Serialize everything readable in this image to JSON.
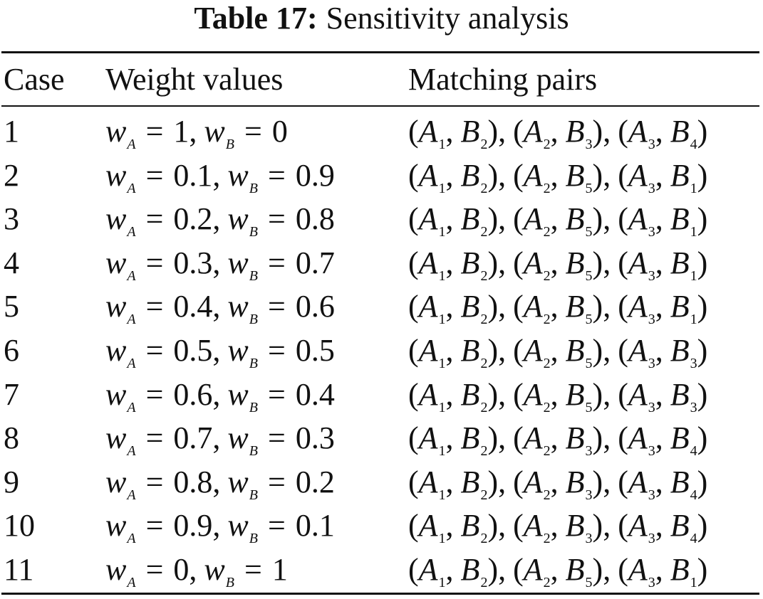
{
  "table": {
    "label": "Table 17:",
    "title": "Sensitivity analysis",
    "headers": {
      "case": "Case",
      "weights": "Weight values",
      "pairs": "Matching pairs"
    },
    "rows": [
      {
        "case": "1",
        "wA": "1",
        "wB": "0",
        "pairs": [
          [
            "1",
            "2"
          ],
          [
            "2",
            "3"
          ],
          [
            "3",
            "4"
          ]
        ]
      },
      {
        "case": "2",
        "wA": "0.1",
        "wB": "0.9",
        "pairs": [
          [
            "1",
            "2"
          ],
          [
            "2",
            "5"
          ],
          [
            "3",
            "1"
          ]
        ]
      },
      {
        "case": "3",
        "wA": "0.2",
        "wB": "0.8",
        "pairs": [
          [
            "1",
            "2"
          ],
          [
            "2",
            "5"
          ],
          [
            "3",
            "1"
          ]
        ]
      },
      {
        "case": "4",
        "wA": "0.3",
        "wB": "0.7",
        "pairs": [
          [
            "1",
            "2"
          ],
          [
            "2",
            "5"
          ],
          [
            "3",
            "1"
          ]
        ]
      },
      {
        "case": "5",
        "wA": "0.4",
        "wB": "0.6",
        "pairs": [
          [
            "1",
            "2"
          ],
          [
            "2",
            "5"
          ],
          [
            "3",
            "1"
          ]
        ]
      },
      {
        "case": "6",
        "wA": "0.5",
        "wB": "0.5",
        "pairs": [
          [
            "1",
            "2"
          ],
          [
            "2",
            "5"
          ],
          [
            "3",
            "3"
          ]
        ]
      },
      {
        "case": "7",
        "wA": "0.6",
        "wB": "0.4",
        "pairs": [
          [
            "1",
            "2"
          ],
          [
            "2",
            "5"
          ],
          [
            "3",
            "3"
          ]
        ]
      },
      {
        "case": "8",
        "wA": "0.7",
        "wB": "0.3",
        "pairs": [
          [
            "1",
            "2"
          ],
          [
            "2",
            "3"
          ],
          [
            "3",
            "4"
          ]
        ]
      },
      {
        "case": "9",
        "wA": "0.8",
        "wB": "0.2",
        "pairs": [
          [
            "1",
            "2"
          ],
          [
            "2",
            "3"
          ],
          [
            "3",
            "4"
          ]
        ]
      },
      {
        "case": "10",
        "wA": "0.9",
        "wB": "0.1",
        "pairs": [
          [
            "1",
            "2"
          ],
          [
            "2",
            "3"
          ],
          [
            "3",
            "4"
          ]
        ]
      },
      {
        "case": "11",
        "wA": "0",
        "wB": "1",
        "pairs": [
          [
            "1",
            "2"
          ],
          [
            "2",
            "5"
          ],
          [
            "3",
            "1"
          ]
        ]
      }
    ]
  }
}
